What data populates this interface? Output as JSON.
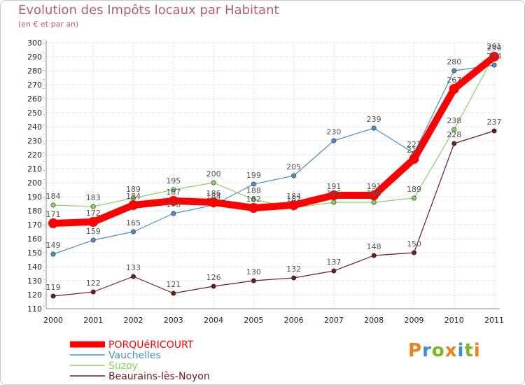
{
  "header": {
    "title": "Evolution des Impôts locaux par Habitant",
    "subtitle": "(en € et par an)"
  },
  "logo": {
    "text": "Proxiti",
    "colors": [
      "#f07f1e",
      "#3a8ed8",
      "#7ab820",
      "#f07f1e",
      "#3a8ed8",
      "#7ab820",
      "#f07f1e"
    ]
  },
  "chart_data": {
    "type": "line",
    "title": "Evolution des Impôts locaux par Habitant",
    "subtitle": "(en € et par an)",
    "xlabel": "",
    "ylabel": "",
    "x": [
      "2000",
      "2001",
      "2002",
      "2003",
      "2004",
      "2005",
      "2006",
      "2007",
      "2008",
      "2009",
      "2010",
      "2011"
    ],
    "ylim": [
      110,
      300
    ],
    "yticks": [
      110,
      120,
      130,
      140,
      150,
      160,
      170,
      180,
      190,
      200,
      210,
      220,
      230,
      240,
      250,
      260,
      270,
      280,
      290,
      300
    ],
    "grid": true,
    "legend": "bottom-left",
    "series": [
      {
        "name": "PORQUéRICOURT",
        "color": "#ff0000",
        "values": [
          171,
          172,
          184,
          187,
          186,
          182,
          184,
          191,
          191,
          217,
          267,
          290
        ],
        "labels": [
          "171",
          "172",
          "184",
          "187",
          "186",
          "182",
          "184",
          "191",
          "191",
          "217",
          "267",
          "290"
        ]
      },
      {
        "name": "Vauchelles",
        "color": "#4a90c8",
        "values": [
          149,
          159,
          165,
          178,
          184,
          199,
          205,
          230,
          239,
          221,
          280,
          284
        ],
        "labels": [
          "149",
          "159",
          "165",
          "178",
          "184",
          "199",
          "205",
          "230",
          "239",
          "221",
          "280",
          "284"
        ]
      },
      {
        "name": "Suzoy",
        "color": "#88d060",
        "values": [
          184,
          183,
          189,
          195,
          200,
          188,
          182,
          186,
          186,
          189,
          238,
          291
        ],
        "labels": [
          "184",
          "183",
          "189",
          "195",
          "200",
          "188",
          "182",
          "186",
          "186",
          "189",
          "238",
          "291"
        ]
      },
      {
        "name": "Beaurains-lès-Noyon",
        "color": "#6b1c1c",
        "values": [
          119,
          122,
          133,
          121,
          126,
          130,
          132,
          137,
          148,
          150,
          228,
          237
        ],
        "labels": [
          "119",
          "122",
          "133",
          "121",
          "126",
          "130",
          "132",
          "137",
          "148",
          "150",
          "228",
          "237"
        ]
      }
    ]
  }
}
